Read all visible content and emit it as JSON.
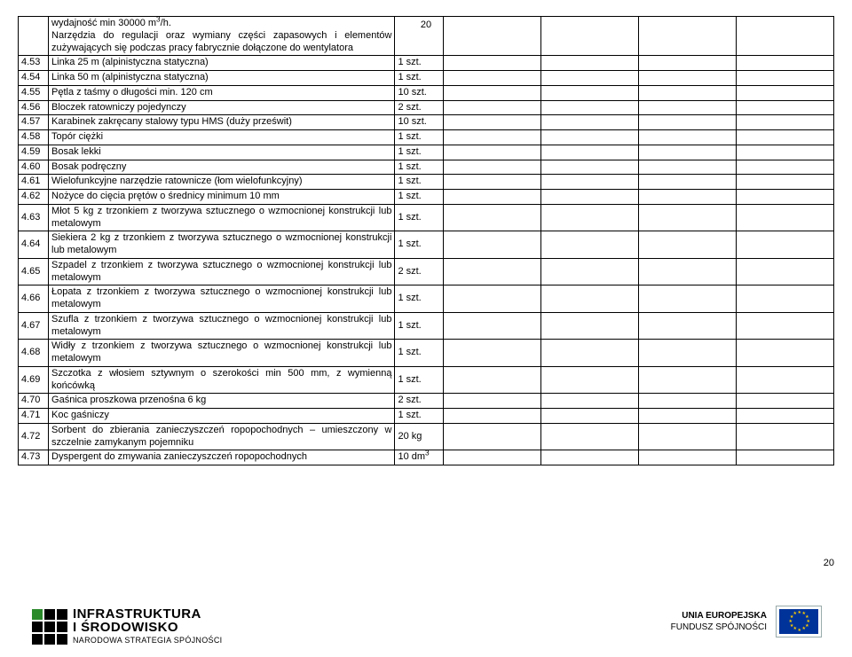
{
  "page_number_top": "20",
  "page_number_bottom": "20",
  "rows": [
    {
      "num": "",
      "desc": "wydajność min 30000 m³/h.\nNarzędzia do regulacji oraz wymiany części zapasowych i elementów zużywających się podczas pracy fabrycznie dołączone do wentylatora",
      "qty": ""
    },
    {
      "num": "4.53",
      "desc": "Linka  25 m (alpinistyczna statyczna)",
      "qty": "1 szt."
    },
    {
      "num": "4.54",
      "desc": "Linka  50 m (alpinistyczna statyczna)",
      "qty": "1 szt."
    },
    {
      "num": "4.55",
      "desc": "Pętla z taśmy o długości min. 120 cm",
      "qty": "10 szt."
    },
    {
      "num": "4.56",
      "desc": "Bloczek ratowniczy pojedynczy",
      "qty": "2 szt."
    },
    {
      "num": "4.57",
      "desc": "Karabinek zakręcany stalowy typu HMS (duży prześwit)",
      "qty": "10 szt."
    },
    {
      "num": "4.58",
      "desc": "Topór ciężki",
      "qty": "1 szt."
    },
    {
      "num": "4.59",
      "desc": "Bosak lekki",
      "qty": "1 szt."
    },
    {
      "num": "4.60",
      "desc": "Bosak podręczny",
      "qty": "1 szt."
    },
    {
      "num": "4.61",
      "desc": "Wielofunkcyjne narzędzie ratownicze (łom wielofunkcyjny)",
      "qty": "1 szt."
    },
    {
      "num": "4.62",
      "desc": "Nożyce do cięcia prętów o średnicy minimum 10 mm",
      "qty": "1 szt."
    },
    {
      "num": "4.63",
      "desc": "Młot 5 kg z trzonkiem z tworzywa sztucznego o wzmocnionej konstrukcji lub metalowym",
      "qty": "1 szt."
    },
    {
      "num": "4.64",
      "desc": "Siekiera 2 kg z trzonkiem z tworzywa sztucznego o wzmocnionej konstrukcji lub metalowym",
      "qty": "1 szt."
    },
    {
      "num": "4.65",
      "desc": "Szpadel z trzonkiem z tworzywa sztucznego o wzmocnionej konstrukcji lub metalowym",
      "qty": "2 szt."
    },
    {
      "num": "4.66",
      "desc": "Łopata z trzonkiem z tworzywa sztucznego o wzmocnionej konstrukcji lub metalowym",
      "qty": "1 szt."
    },
    {
      "num": "4.67",
      "desc": "Szufla z trzonkiem z tworzywa sztucznego o wzmocnionej konstrukcji lub metalowym",
      "qty": "1 szt."
    },
    {
      "num": "4.68",
      "desc": "Widły z trzonkiem z tworzywa sztucznego o wzmocnionej konstrukcji lub metalowym",
      "qty": "1 szt."
    },
    {
      "num": "4.69",
      "desc": "Szczotka z włosiem sztywnym o szerokości min 500 mm, z wymienną końcówką",
      "qty": "1 szt."
    },
    {
      "num": "4.70",
      "desc": "Gaśnica proszkowa przenośna 6 kg",
      "qty": "2 szt."
    },
    {
      "num": "4.71",
      "desc": "Koc gaśniczy",
      "qty": "1 szt."
    },
    {
      "num": "4.72",
      "desc": "Sorbent do zbierania zanieczyszczeń ropopochodnych – umieszczony w szczelnie zamykanym pojemniku",
      "qty": "20 kg"
    },
    {
      "num": "4.73",
      "desc": "Dyspergent do zmywania zanieczyszczeń ropopochodnych",
      "qty": "10 dm³"
    }
  ],
  "footer": {
    "ie_title_line1": "INFRASTRUKTURA",
    "ie_title_line2": "I ŚRODOWISKO",
    "ie_sub": "NARODOWA STRATEGIA SPÓJNOŚCI",
    "eu_line1": "UNIA EUROPEJSKA",
    "eu_line2": "FUNDUSZ SPÓJNOŚCI"
  },
  "colors": {
    "green": "#2a8a2a",
    "eu_blue": "#003399",
    "eu_yellow": "#ffcc00"
  }
}
